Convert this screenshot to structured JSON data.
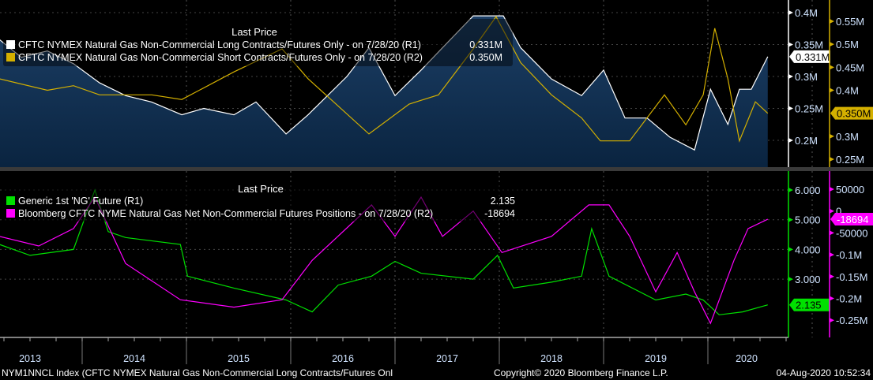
{
  "chart_data": [
    {
      "type": "line",
      "legend_title": "Last Price",
      "legend_placement": "top-left",
      "x_range": [
        "2013-03-15",
        "2020-07-28"
      ],
      "series": [
        {
          "name": "CFTC NYMEX Natural Gas Non-Commercial Long Contracts/Futures Only -  on 7/28/20  (R1)",
          "last": "0.331M",
          "color": "#ffffff",
          "axis": "R1",
          "area_fill": true,
          "points": [
            [
              "2013-03-15",
              0.358
            ],
            [
              "2013-06-01",
              0.33
            ],
            [
              "2013-09-01",
              0.34
            ],
            [
              "2013-12-01",
              0.32
            ],
            [
              "2014-03-01",
              0.29
            ],
            [
              "2014-06-01",
              0.27
            ],
            [
              "2014-09-01",
              0.26
            ],
            [
              "2014-12-15",
              0.24
            ],
            [
              "2015-03-01",
              0.25
            ],
            [
              "2015-06-15",
              0.24
            ],
            [
              "2015-09-01",
              0.26
            ],
            [
              "2015-12-15",
              0.21
            ],
            [
              "2016-03-01",
              0.24
            ],
            [
              "2016-07-15",
              0.3
            ],
            [
              "2016-10-01",
              0.345
            ],
            [
              "2017-01-01",
              0.27
            ],
            [
              "2017-04-01",
              0.31
            ],
            [
              "2017-06-15",
              0.345
            ],
            [
              "2017-10-01",
              0.395
            ],
            [
              "2018-01-15",
              0.395
            ],
            [
              "2018-03-15",
              0.345
            ],
            [
              "2018-07-01",
              0.296
            ],
            [
              "2018-10-15",
              0.27
            ],
            [
              "2019-01-01",
              0.31
            ],
            [
              "2019-03-15",
              0.235
            ],
            [
              "2019-06-01",
              0.235
            ],
            [
              "2019-08-20",
              0.205
            ],
            [
              "2019-11-15",
              0.185
            ],
            [
              "2020-01-10",
              0.28
            ],
            [
              "2020-03-10",
              0.225
            ],
            [
              "2020-04-20",
              0.28
            ],
            [
              "2020-06-01",
              0.28
            ],
            [
              "2020-07-28",
              0.331
            ]
          ]
        },
        {
          "name": "CFTC NYMEX Natural Gas Non-Commercial Short Contracts/Futures Only -  on 7/28/20  (R2)",
          "last": "0.350M",
          "color": "#d4b000",
          "axis": "R2",
          "points": [
            [
              "2013-03-15",
              0.425
            ],
            [
              "2013-09-01",
              0.4
            ],
            [
              "2013-12-01",
              0.41
            ],
            [
              "2014-03-01",
              0.39
            ],
            [
              "2014-09-01",
              0.39
            ],
            [
              "2014-12-15",
              0.38
            ],
            [
              "2015-06-15",
              0.44
            ],
            [
              "2015-12-01",
              0.49
            ],
            [
              "2016-03-01",
              0.425
            ],
            [
              "2016-10-01",
              0.305
            ],
            [
              "2017-02-20",
              0.37
            ],
            [
              "2017-06-01",
              0.39
            ],
            [
              "2017-10-01",
              0.49
            ],
            [
              "2017-12-20",
              0.56
            ],
            [
              "2018-03-15",
              0.46
            ],
            [
              "2018-07-01",
              0.39
            ],
            [
              "2018-10-15",
              0.34
            ],
            [
              "2018-12-20",
              0.29
            ],
            [
              "2019-04-01",
              0.29
            ],
            [
              "2019-08-01",
              0.39
            ],
            [
              "2019-10-15",
              0.325
            ],
            [
              "2019-12-15",
              0.39
            ],
            [
              "2020-01-25",
              0.535
            ],
            [
              "2020-03-10",
              0.425
            ],
            [
              "2020-04-20",
              0.29
            ],
            [
              "2020-06-15",
              0.375
            ],
            [
              "2020-07-28",
              0.35
            ]
          ]
        }
      ],
      "axes": {
        "R1": {
          "ticks": [
            "0.4M",
            "0.35M",
            "0.3M",
            "0.25M",
            "0.2M"
          ],
          "tick_values": [
            0.4,
            0.35,
            0.3,
            0.25,
            0.2
          ],
          "color": "#ffffff"
        },
        "R2": {
          "ticks": [
            "0.55M",
            "0.5M",
            "0.45M",
            "0.4M",
            "0.3M",
            "0.25M"
          ],
          "tick_values": [
            0.55,
            0.5,
            0.45,
            0.4,
            0.3,
            0.25
          ],
          "color": "#d4b000"
        }
      }
    },
    {
      "type": "line",
      "legend_title": "Last Price",
      "legend_placement": "top-left",
      "x_range": [
        "2013-03-15",
        "2020-07-28"
      ],
      "series": [
        {
          "name": "Generic 1st 'NG' Future  (R1)",
          "last": "2.135",
          "color": "#00e000",
          "axis": "R1",
          "points": [
            [
              "2013-03-15",
              4.17
            ],
            [
              "2013-07-01",
              3.8
            ],
            [
              "2013-12-01",
              4.0
            ],
            [
              "2014-02-15",
              6.0
            ],
            [
              "2014-04-01",
              4.6
            ],
            [
              "2014-06-01",
              4.4
            ],
            [
              "2014-12-10",
              4.17
            ],
            [
              "2015-01-05",
              3.1
            ],
            [
              "2015-06-15",
              2.7
            ],
            [
              "2015-12-15",
              2.3
            ],
            [
              "2016-03-15",
              1.9
            ],
            [
              "2016-06-15",
              2.8
            ],
            [
              "2016-10-10",
              3.1
            ],
            [
              "2017-01-01",
              3.6
            ],
            [
              "2017-04-01",
              3.2
            ],
            [
              "2017-10-01",
              3.0
            ],
            [
              "2017-12-25",
              3.8
            ],
            [
              "2018-02-20",
              2.7
            ],
            [
              "2018-07-01",
              2.9
            ],
            [
              "2018-10-15",
              3.1
            ],
            [
              "2018-11-20",
              4.7
            ],
            [
              "2019-01-20",
              3.1
            ],
            [
              "2019-07-01",
              2.3
            ],
            [
              "2019-10-15",
              2.5
            ],
            [
              "2019-12-15",
              2.3
            ],
            [
              "2020-02-10",
              1.8
            ],
            [
              "2020-05-01",
              1.9
            ],
            [
              "2020-07-28",
              2.135
            ]
          ]
        },
        {
          "name": "Bloomberg CFTC NYME Natural Gas Net Non-Commercial Futures Positions -  on 7/28/20  (R2)",
          "last": "-18694",
          "color": "#ff00ff",
          "axis": "R2",
          "points": [
            [
              "2013-03-15",
              -58000
            ],
            [
              "2013-08-01",
              -80000
            ],
            [
              "2013-12-01",
              -40000
            ],
            [
              "2014-02-15",
              32000
            ],
            [
              "2014-06-01",
              -120000
            ],
            [
              "2014-12-10",
              -203000
            ],
            [
              "2015-06-15",
              -220000
            ],
            [
              "2015-12-01",
              -203000
            ],
            [
              "2016-03-15",
              -113000
            ],
            [
              "2016-10-10",
              14000
            ],
            [
              "2017-01-01",
              -58000
            ],
            [
              "2017-04-01",
              32000
            ],
            [
              "2017-06-15",
              -58000
            ],
            [
              "2017-10-01",
              0
            ],
            [
              "2018-01-10",
              -95000
            ],
            [
              "2018-07-01",
              -58000
            ],
            [
              "2018-11-10",
              14000
            ],
            [
              "2019-01-20",
              14000
            ],
            [
              "2019-04-01",
              -58000
            ],
            [
              "2019-07-01",
              -185000
            ],
            [
              "2019-09-15",
              -95000
            ],
            [
              "2019-11-15",
              -185000
            ],
            [
              "2020-01-10",
              -257000
            ],
            [
              "2020-04-01",
              -113000
            ],
            [
              "2020-05-20",
              -40000
            ],
            [
              "2020-07-28",
              -18694
            ]
          ]
        }
      ],
      "axes": {
        "R1": {
          "ticks": [
            "6.000",
            "5.000",
            "4.000",
            "3.000"
          ],
          "tick_values": [
            6,
            5,
            4,
            3
          ],
          "color": "#00e000"
        },
        "R2": {
          "ticks": [
            "50000",
            "0",
            "-50000",
            "-0.1M",
            "-0.15M",
            "-0.2M",
            "-0.25M"
          ],
          "tick_values": [
            50000,
            0,
            -50000,
            -100000,
            -150000,
            -200000,
            -250000
          ],
          "color": "#ff00ff"
        }
      }
    }
  ],
  "x_axis": {
    "years": [
      "2013",
      "2014",
      "2015",
      "2016",
      "2017",
      "2018",
      "2019",
      "2020"
    ]
  },
  "footer": {
    "security": "NYM1NNCL Index (CFTC NYMEX Natural Gas Non-Commercial Long Contracts/Futures Onl",
    "copyright": "Copyright© 2020 Bloomberg Finance L.P.",
    "timestamp": "04-Aug-2020 10:52:34"
  },
  "colors": {
    "background": "#000000",
    "area_top": "#1c3f66",
    "area_bottom": "#0a2440",
    "axis_tick_text": "#cfe3ff"
  }
}
